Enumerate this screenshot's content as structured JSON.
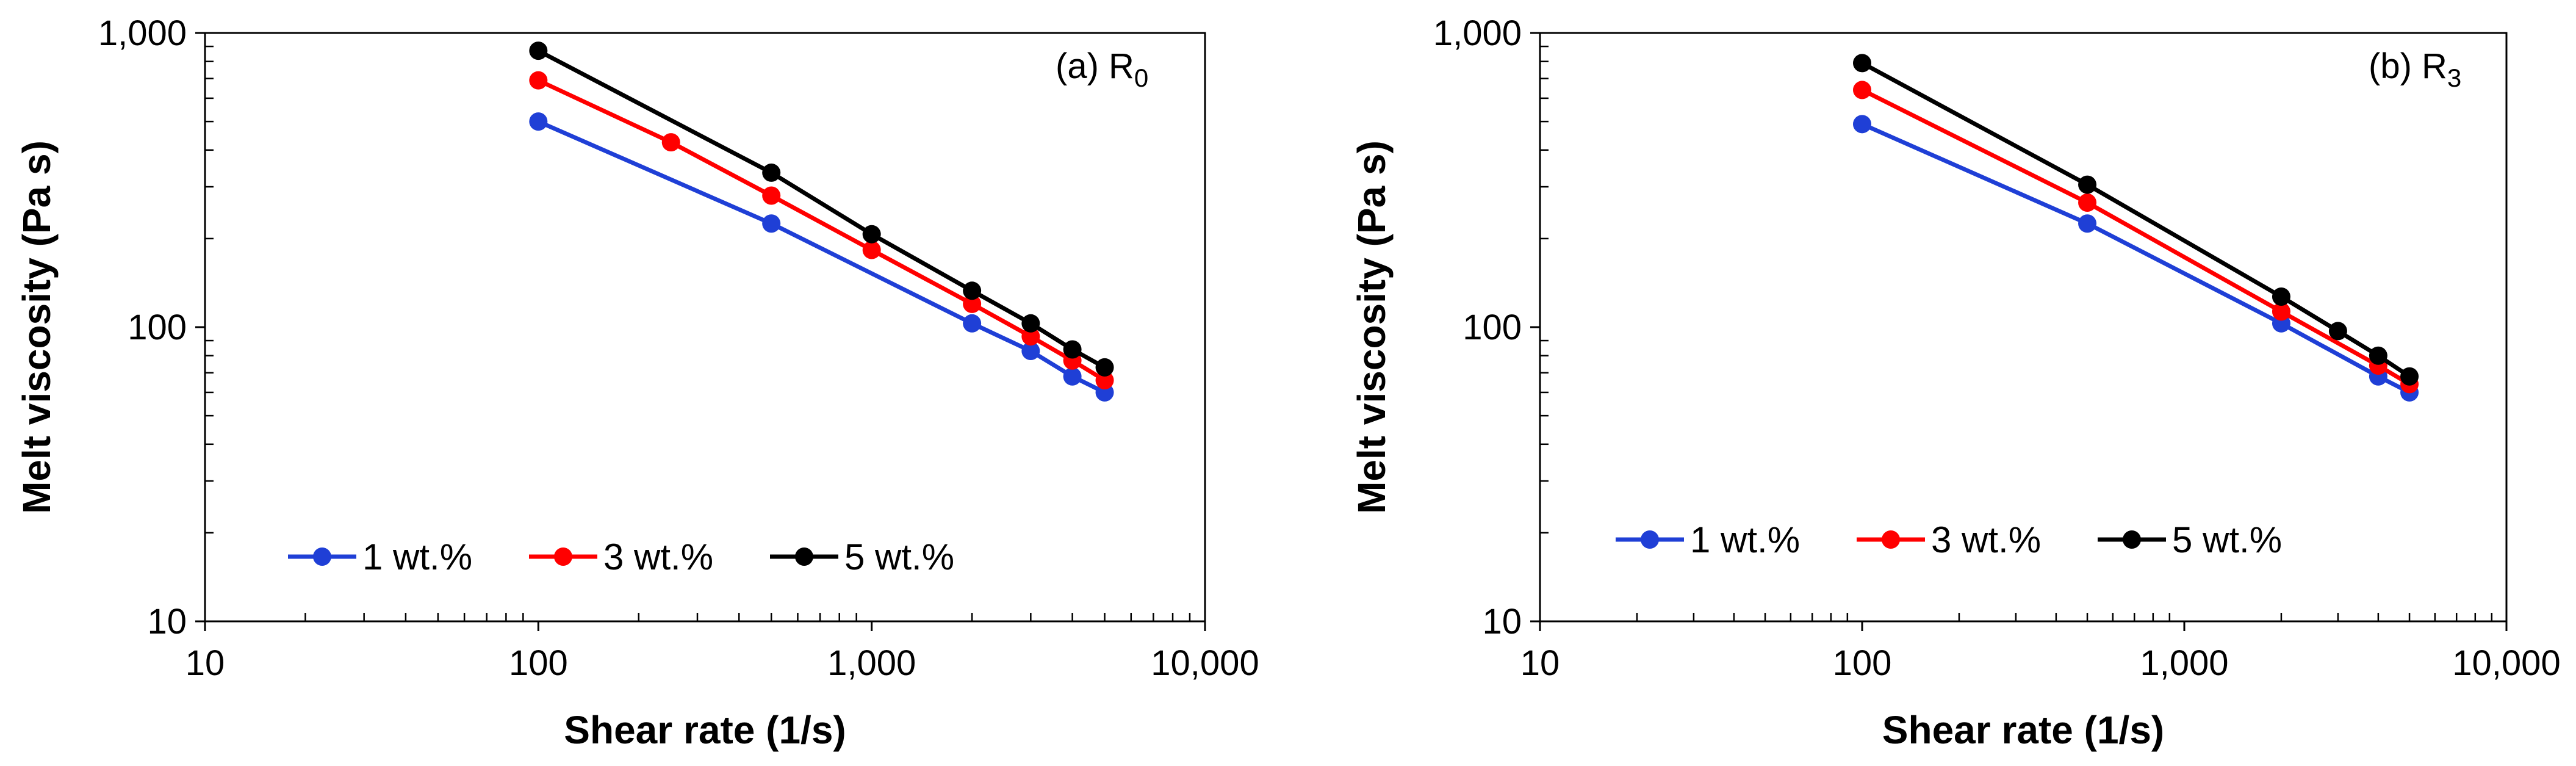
{
  "chart_data": [
    {
      "type": "line",
      "panel": "(a) R",
      "panel_subscript": "0",
      "xlabel": "Shear rate (1/s)",
      "ylabel": "Melt viscosity (Pa s)",
      "xscale": "log",
      "yscale": "log",
      "xlim": [
        10,
        10000
      ],
      "ylim": [
        10,
        1000
      ],
      "x_ticks": [
        {
          "value": 10,
          "label": "10"
        },
        {
          "value": 100,
          "label": "100"
        },
        {
          "value": 1000,
          "label": "1,000"
        },
        {
          "value": 10000,
          "label": "10,000"
        }
      ],
      "y_ticks": [
        {
          "value": 10,
          "label": "10"
        },
        {
          "value": 100,
          "label": "100"
        },
        {
          "value": 1000,
          "label": "1,000"
        }
      ],
      "legend_position": "bottom-left",
      "series": [
        {
          "name": "1 wt.%",
          "color": "#1f3fd6",
          "x": [
            100,
            500,
            2000,
            3000,
            4000,
            5000
          ],
          "y": [
            500,
            225,
            103,
            83,
            68,
            60
          ]
        },
        {
          "name": "3 wt.%",
          "color": "#ff0000",
          "x": [
            100,
            250,
            500,
            1000,
            2000,
            3000,
            4000,
            5000
          ],
          "y": [
            690,
            425,
            280,
            183,
            120,
            93,
            77,
            66
          ]
        },
        {
          "name": "5 wt.%",
          "color": "#000000",
          "x": [
            100,
            500,
            1000,
            2000,
            3000,
            4000,
            5000
          ],
          "y": [
            870,
            335,
            207,
            133,
            103,
            84,
            73
          ]
        }
      ]
    },
    {
      "type": "line",
      "panel": "(b) R",
      "panel_subscript": "3",
      "xlabel": "Shear rate (1/s)",
      "ylabel": "Melt viscosity (Pa s)",
      "xscale": "log",
      "yscale": "log",
      "xlim": [
        10,
        10000
      ],
      "ylim": [
        10,
        1000
      ],
      "x_ticks": [
        {
          "value": 10,
          "label": "10"
        },
        {
          "value": 100,
          "label": "100"
        },
        {
          "value": 1000,
          "label": "1,000"
        },
        {
          "value": 10000,
          "label": "10,000"
        }
      ],
      "y_ticks": [
        {
          "value": 10,
          "label": "10"
        },
        {
          "value": 100,
          "label": "100"
        },
        {
          "value": 1000,
          "label": "1,000"
        }
      ],
      "legend_position": "bottom-left",
      "series": [
        {
          "name": "1 wt.%",
          "color": "#1f3fd6",
          "x": [
            100,
            500,
            2000,
            4000,
            5000
          ],
          "y": [
            490,
            225,
            103,
            68,
            60
          ]
        },
        {
          "name": "3 wt.%",
          "color": "#ff0000",
          "x": [
            100,
            500,
            2000,
            4000,
            5000
          ],
          "y": [
            640,
            265,
            113,
            74,
            64
          ]
        },
        {
          "name": "5 wt.%",
          "color": "#000000",
          "x": [
            100,
            500,
            2000,
            3000,
            4000,
            5000
          ],
          "y": [
            790,
            305,
            127,
            97,
            80,
            68
          ]
        }
      ]
    }
  ]
}
